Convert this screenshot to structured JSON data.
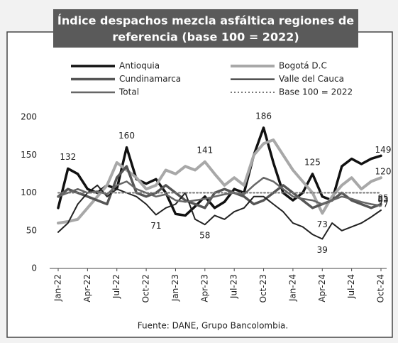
{
  "chart_data": {
    "type": "line",
    "title": [
      "Índice despachos mezcla asfáltica regiones de",
      "referencia (base 100 = 2022)"
    ],
    "source": "Fuente: DANE, Grupo Bancolombia.",
    "categories": [
      "Jan-22",
      null,
      null,
      "Apr-22",
      null,
      null,
      "Jul-22",
      null,
      null,
      "Oct-22",
      null,
      null,
      "Jan-23",
      null,
      null,
      "Apr-23",
      null,
      null,
      "Jul-23",
      null,
      null,
      "Oct-23",
      null,
      null,
      "Jan-24",
      null,
      null,
      "Apr-24",
      null,
      null,
      "Jul-24",
      null,
      null,
      "Oct-24"
    ],
    "ylim": [
      0,
      200
    ],
    "yticks": [
      0,
      50,
      100,
      150,
      200
    ],
    "grid": false,
    "series": [
      {
        "name": "Antioquia",
        "color": "#111111",
        "values": [
          80,
          132,
          125,
          105,
          100,
          110,
          105,
          160,
          118,
          112,
          118,
          100,
          72,
          70,
          82,
          95,
          80,
          88,
          105,
          100,
          150,
          186,
          140,
          100,
          90,
          100,
          125,
          95,
          90,
          135,
          145,
          138,
          145,
          149
        ],
        "value_labels": [
          null,
          "132",
          null,
          null,
          null,
          null,
          null,
          "160",
          null,
          null,
          null,
          null,
          null,
          null,
          null,
          null,
          null,
          null,
          null,
          null,
          null,
          "186",
          null,
          null,
          null,
          null,
          "125",
          null,
          null,
          null,
          null,
          null,
          null,
          "149"
        ]
      },
      {
        "name": "Bogotá D.C",
        "color": "#a8a8a8",
        "values": [
          60,
          62,
          65,
          80,
          95,
          110,
          140,
          130,
          120,
          105,
          110,
          130,
          125,
          135,
          130,
          141,
          125,
          110,
          120,
          110,
          150,
          165,
          170,
          150,
          130,
          115,
          100,
          73,
          95,
          110,
          120,
          105,
          115,
          120
        ],
        "value_labels": [
          null,
          null,
          null,
          null,
          null,
          null,
          null,
          null,
          null,
          null,
          null,
          null,
          null,
          null,
          null,
          "141",
          null,
          null,
          null,
          null,
          null,
          null,
          null,
          null,
          null,
          null,
          null,
          "73",
          null,
          null,
          null,
          null,
          null,
          "120"
        ]
      },
      {
        "name": "Cundinamarca",
        "color": "#555555",
        "values": [
          95,
          105,
          100,
          95,
          90,
          85,
          120,
          135,
          100,
          95,
          100,
          110,
          100,
          90,
          85,
          80,
          100,
          105,
          100,
          95,
          85,
          90,
          100,
          110,
          100,
          90,
          80,
          85,
          90,
          100,
          90,
          85,
          80,
          85
        ],
        "value_labels": [
          null,
          null,
          null,
          null,
          null,
          null,
          null,
          null,
          null,
          null,
          null,
          null,
          null,
          null,
          null,
          null,
          null,
          null,
          null,
          null,
          null,
          null,
          null,
          null,
          null,
          null,
          null,
          null,
          null,
          null,
          null,
          null,
          null,
          "85"
        ]
      },
      {
        "name": "Valle del Cauca",
        "color": "#222222",
        "values": [
          48,
          60,
          85,
          100,
          110,
          95,
          105,
          100,
          95,
          85,
          71,
          80,
          85,
          100,
          65,
          58,
          70,
          65,
          75,
          80,
          95,
          95,
          85,
          75,
          60,
          55,
          45,
          39,
          60,
          50,
          55,
          60,
          68,
          77
        ],
        "value_labels": [
          null,
          null,
          null,
          null,
          null,
          null,
          null,
          null,
          null,
          null,
          "71",
          null,
          null,
          null,
          null,
          "58",
          null,
          null,
          null,
          null,
          null,
          null,
          null,
          null,
          null,
          null,
          null,
          "39",
          null,
          null,
          null,
          null,
          null,
          "77"
        ]
      },
      {
        "name": "Total",
        "color": "#666666",
        "values": [
          95,
          100,
          105,
          100,
          102,
          98,
          110,
          115,
          105,
          100,
          95,
          98,
          90,
          88,
          90,
          92,
          95,
          98,
          100,
          98,
          110,
          120,
          115,
          105,
          95,
          92,
          90,
          85,
          90,
          95,
          92,
          88,
          85,
          83
        ],
        "value_labels": [
          null,
          null,
          null,
          null,
          null,
          null,
          null,
          null,
          null,
          null,
          null,
          null,
          null,
          null,
          null,
          null,
          null,
          null,
          null,
          null,
          null,
          null,
          null,
          null,
          null,
          null,
          null,
          null,
          null,
          null,
          null,
          null,
          null,
          "83"
        ]
      },
      {
        "name": "Base 100 = 2022",
        "color": "#777777",
        "style": "dotted",
        "values": [
          100,
          100,
          100,
          100,
          100,
          100,
          100,
          100,
          100,
          100,
          100,
          100,
          100,
          100,
          100,
          100,
          100,
          100,
          100,
          100,
          100,
          100,
          100,
          100,
          100,
          100,
          100,
          100,
          100,
          100,
          100,
          100,
          100,
          100
        ]
      }
    ]
  }
}
